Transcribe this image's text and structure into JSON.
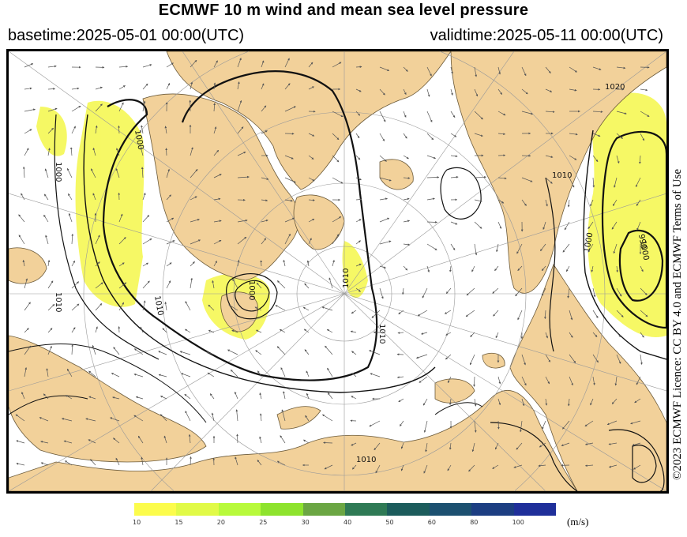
{
  "header": {
    "title": "ECMWF 10 m wind and mean sea level pressure",
    "basetime": "basetime:2025-05-01 00:00(UTC)",
    "validtime": "validtime:2025-05-11 00:00(UTC)"
  },
  "licence": "©2023 ECMWF Licence: CC BY 4.0 and ECMWF Terms of Use",
  "map": {
    "region": "Arctic (north polar stereographic)",
    "isobar_labels": [
      "1020",
      "1010",
      "1010",
      "1010",
      "1010",
      "1010",
      "1000",
      "1000",
      "1000",
      "1000",
      "1000",
      "990",
      "1010"
    ],
    "colors": {
      "ocean": "#ffffff",
      "land": "#f2d19a",
      "wind_fill": "#f4f74a",
      "isobar": "#000000",
      "graticule": "#999999"
    }
  },
  "colorbar": {
    "ticks": [
      "10",
      "15",
      "20",
      "25",
      "30",
      "40",
      "50",
      "60",
      "80",
      "100"
    ],
    "unit": "(m/s)",
    "colors": [
      "#fcfc4c",
      "#e1fa47",
      "#b8fa3b",
      "#8ee32d",
      "#6ba643",
      "#2f7a55",
      "#1c5c5c",
      "#1c5070",
      "#1c3e82",
      "#1f2f9a"
    ]
  }
}
